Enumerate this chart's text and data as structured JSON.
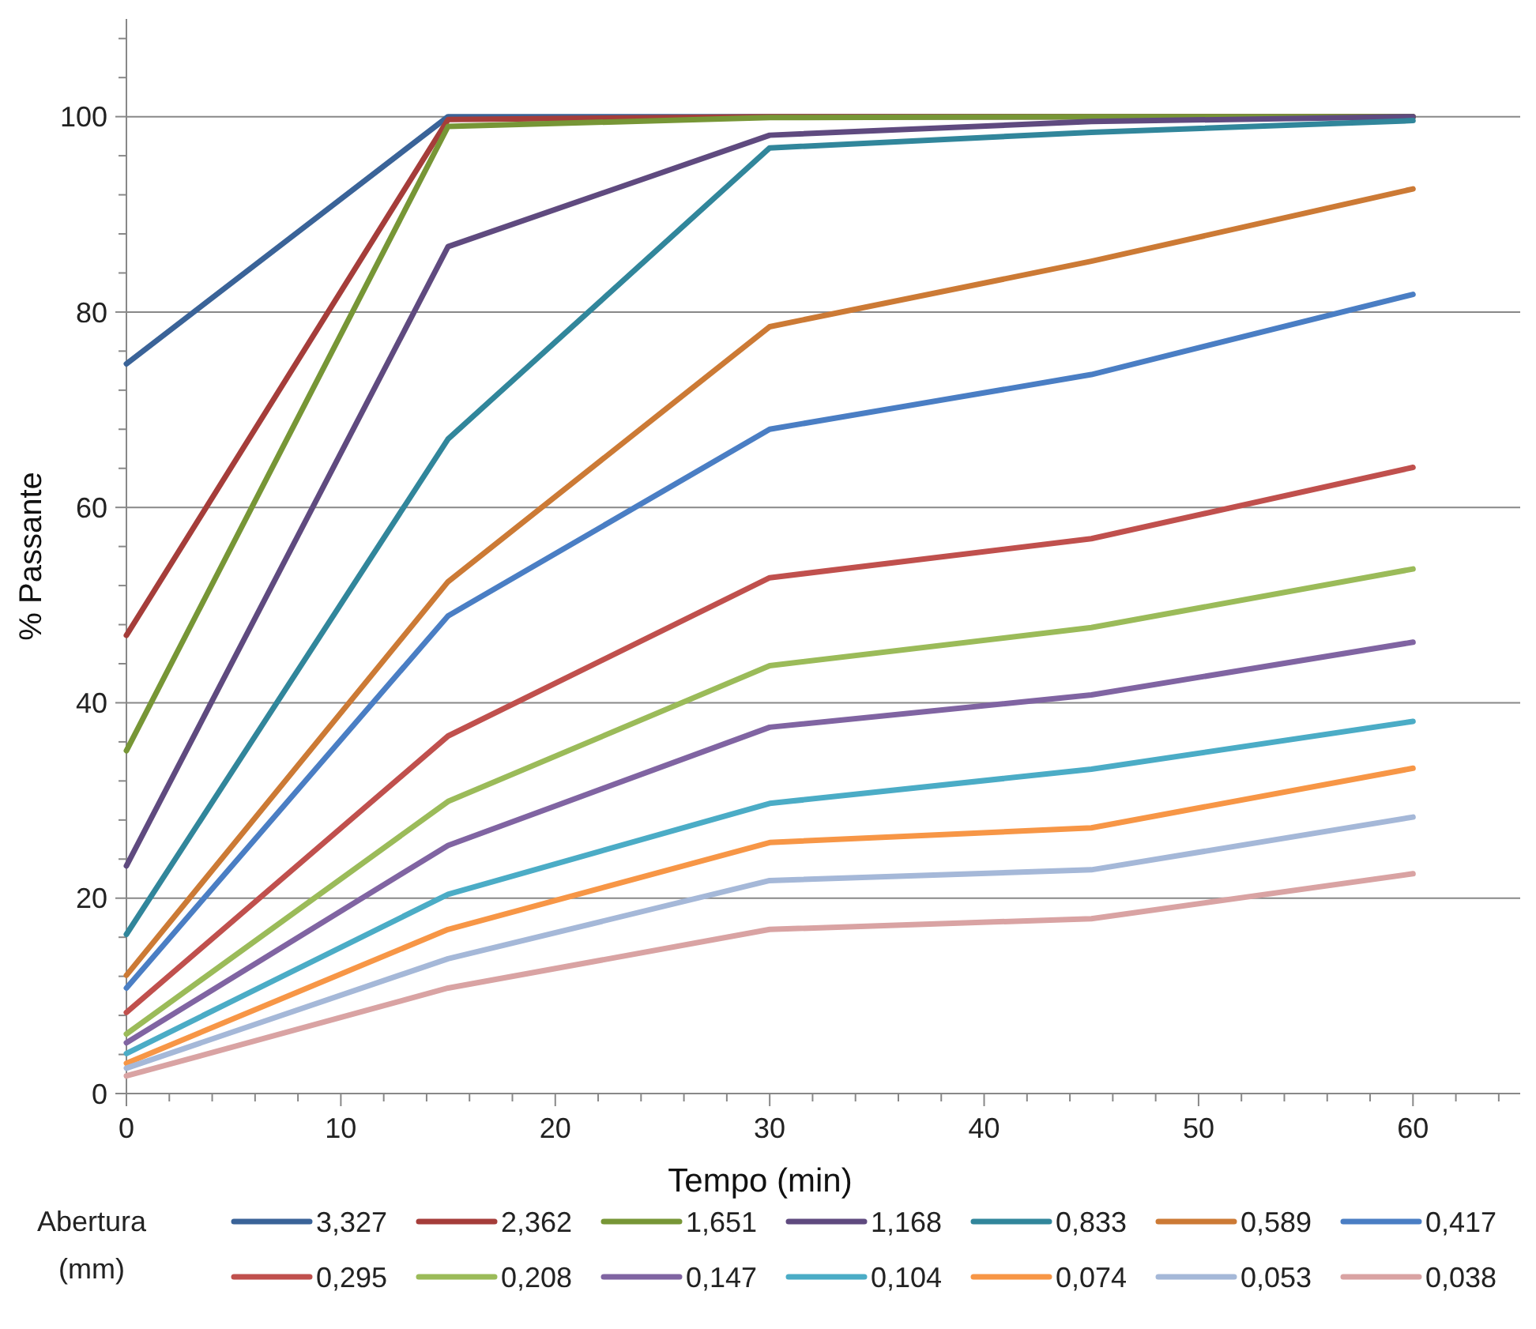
{
  "chart_data": {
    "type": "line",
    "xlabel": "Tempo (min)",
    "ylabel": "% Passante",
    "legend_title": "Abertura (mm)",
    "legend": "bottom",
    "grid": "y",
    "marker": "none",
    "line_style": "solid",
    "x": [
      0,
      15,
      30,
      45,
      60
    ],
    "xlim": [
      0,
      65
    ],
    "xticks": [
      0,
      {
        "value": 2,
        "label": null
      },
      {
        "value": 4,
        "label": null
      },
      {
        "value": 6,
        "label": null
      },
      {
        "value": 8,
        "label": null
      },
      10,
      {
        "value": 12,
        "label": null
      },
      {
        "value": 14,
        "label": null
      },
      {
        "value": 16,
        "label": null
      },
      {
        "value": 18,
        "label": null
      },
      20,
      {
        "value": 22,
        "label": null
      },
      {
        "value": 24,
        "label": null
      },
      {
        "value": 26,
        "label": null
      },
      {
        "value": 28,
        "label": null
      },
      30,
      {
        "value": 32,
        "label": null
      },
      {
        "value": 34,
        "label": null
      },
      {
        "value": 36,
        "label": null
      },
      {
        "value": 38,
        "label": null
      },
      40,
      {
        "value": 42,
        "label": null
      },
      {
        "value": 44,
        "label": null
      },
      {
        "value": 46,
        "label": null
      },
      {
        "value": 48,
        "label": null
      },
      50,
      {
        "value": 52,
        "label": null
      },
      {
        "value": 54,
        "label": null
      },
      {
        "value": 56,
        "label": null
      },
      {
        "value": 58,
        "label": null
      },
      60,
      {
        "value": 62,
        "label": null
      },
      {
        "value": 64,
        "label": null
      }
    ],
    "ylim": [
      0,
      110
    ],
    "yticks": [
      0,
      {
        "value": 4,
        "label": null
      },
      {
        "value": 8,
        "label": null
      },
      {
        "value": 12,
        "label": null
      },
      {
        "value": 16,
        "label": null
      },
      20,
      {
        "value": 24,
        "label": null
      },
      {
        "value": 28,
        "label": null
      },
      {
        "value": 32,
        "label": null
      },
      {
        "value": 36,
        "label": null
      },
      40,
      {
        "value": 44,
        "label": null
      },
      {
        "value": 48,
        "label": null
      },
      {
        "value": 52,
        "label": null
      },
      {
        "value": 56,
        "label": null
      },
      60,
      {
        "value": 64,
        "label": null
      },
      {
        "value": 68,
        "label": null
      },
      {
        "value": 72,
        "label": null
      },
      {
        "value": 76,
        "label": null
      },
      80,
      {
        "value": 84,
        "label": null
      },
      {
        "value": 88,
        "label": null
      },
      {
        "value": 92,
        "label": null
      },
      {
        "value": 96,
        "label": null
      },
      100,
      {
        "value": 104,
        "label": null
      },
      {
        "value": 108,
        "label": null
      }
    ],
    "series": [
      {
        "name": "3,327",
        "color": "#3a6398",
        "values": [
          74.7,
          100,
          100,
          100,
          100
        ]
      },
      {
        "name": "2,362",
        "color": "#a53d3a",
        "values": [
          46.9,
          99.7,
          100,
          100,
          100
        ]
      },
      {
        "name": "1,651",
        "color": "#779636",
        "values": [
          35.1,
          99.0,
          99.9,
          100,
          100
        ]
      },
      {
        "name": "1,168",
        "color": "#5f4a7f",
        "values": [
          23.3,
          86.7,
          98.1,
          99.5,
          100
        ]
      },
      {
        "name": "0,833",
        "color": "#31869b",
        "values": [
          16.3,
          67.0,
          96.8,
          98.4,
          99.6
        ]
      },
      {
        "name": "0,589",
        "color": "#cc7a35",
        "values": [
          12.1,
          52.4,
          78.5,
          85.2,
          92.6
        ]
      },
      {
        "name": "0,417",
        "color": "#4a7ec4",
        "values": [
          10.8,
          48.9,
          68.0,
          73.6,
          81.8
        ]
      },
      {
        "name": "0,295",
        "color": "#c0504d",
        "values": [
          8.3,
          36.6,
          52.8,
          56.8,
          64.1
        ]
      },
      {
        "name": "0,208",
        "color": "#9bbb59",
        "values": [
          6.1,
          29.9,
          43.8,
          47.7,
          53.7
        ]
      },
      {
        "name": "0,147",
        "color": "#8064a2",
        "values": [
          5.2,
          25.4,
          37.5,
          40.8,
          46.2
        ]
      },
      {
        "name": "0,104",
        "color": "#4bacc6",
        "values": [
          4.1,
          20.4,
          29.7,
          33.2,
          38.1
        ]
      },
      {
        "name": "0,074",
        "color": "#f79646",
        "values": [
          3.1,
          16.8,
          25.7,
          27.2,
          33.3
        ]
      },
      {
        "name": "0,053",
        "color": "#a5b8d8",
        "values": [
          2.6,
          13.8,
          21.8,
          22.9,
          28.3
        ]
      },
      {
        "name": "0,038",
        "color": "#d9a3a3",
        "values": [
          1.8,
          10.8,
          16.8,
          17.9,
          22.5
        ]
      }
    ]
  }
}
